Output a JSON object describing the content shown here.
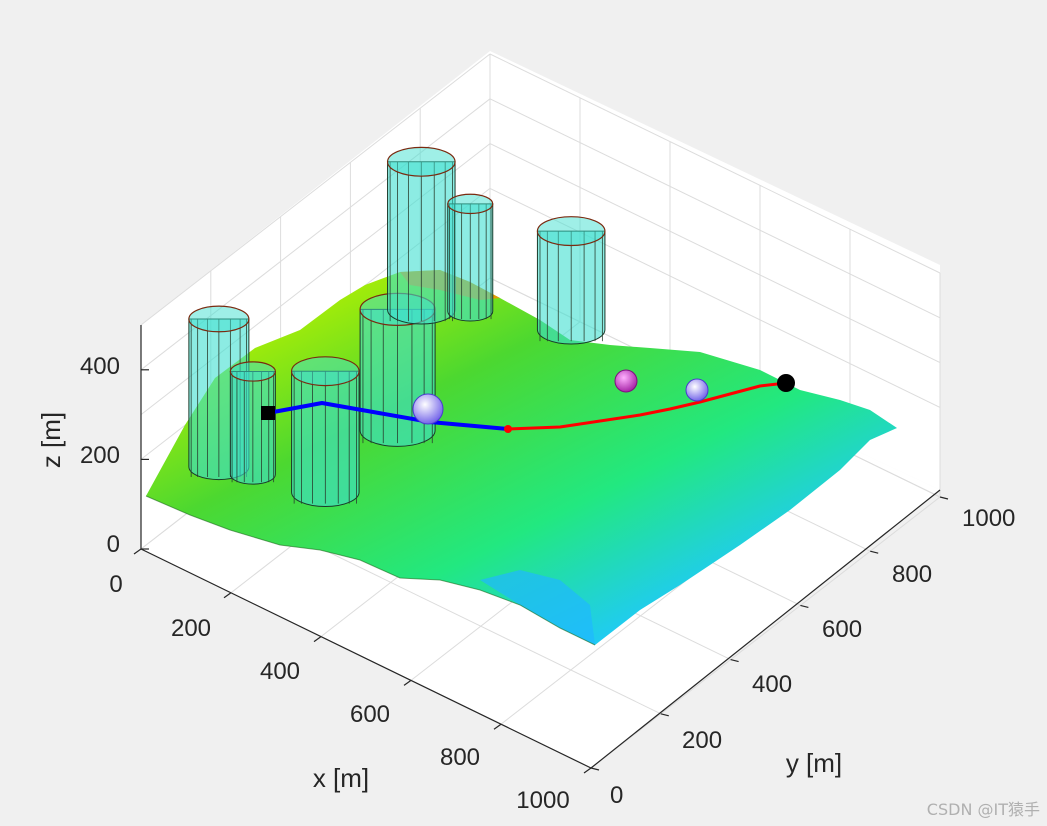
{
  "chart_data": {
    "type": "surface3d",
    "xlabel": "x [m]",
    "ylabel": "y [m]",
    "zlabel": "z [m]",
    "x_ticks": [
      "0",
      "200",
      "400",
      "600",
      "800",
      "1000"
    ],
    "y_ticks": [
      "0",
      "200",
      "400",
      "600",
      "800",
      "1000"
    ],
    "z_ticks": [
      "0",
      "200",
      "400"
    ],
    "xlim": [
      0,
      1000
    ],
    "ylim": [
      0,
      1000
    ],
    "zlim": [
      0,
      500
    ],
    "grid": true,
    "colormap": "jet",
    "colors": {
      "background": "#f0f0f0",
      "axes_background": "#ffffff",
      "grid": "#dcdcdc",
      "obstacle_fill": "#40e0d0",
      "path_blue": "#0000ff",
      "path_red": "#ff0000",
      "start_marker": "#000000",
      "goal_marker": "#000000",
      "sphere_purple": "#cc33cc",
      "sphere_blue": "#5050ff"
    },
    "start_marker": {
      "x": 150,
      "y": 30,
      "z": 300,
      "shape": "square"
    },
    "goal_marker": {
      "x": 230,
      "y": 930,
      "z": 310,
      "shape": "circle"
    },
    "cylinders": [
      {
        "x": 80,
        "y": 120,
        "radius": 40,
        "height": 480
      },
      {
        "x": 140,
        "y": 140,
        "radius": 30,
        "height": 380
      },
      {
        "x": 270,
        "y": 180,
        "radius": 45,
        "height": 420
      },
      {
        "x": 260,
        "y": 400,
        "radius": 50,
        "height": 420
      },
      {
        "x": 80,
        "y": 700,
        "radius": 45,
        "height": 480
      },
      {
        "x": 150,
        "y": 750,
        "radius": 30,
        "height": 390
      },
      {
        "x": 320,
        "y": 820,
        "radius": 45,
        "height": 370
      }
    ],
    "spheres": [
      {
        "x": 260,
        "y": 200,
        "z": 320,
        "color": "blue-white"
      },
      {
        "x": 150,
        "y": 620,
        "z": 330,
        "color": "purple"
      },
      {
        "x": 220,
        "y": 740,
        "z": 330,
        "color": "blue-white"
      }
    ],
    "path_blue": [
      [
        150,
        30
      ],
      [
        155,
        90
      ],
      [
        200,
        200
      ],
      [
        300,
        400
      ]
    ],
    "path_red": [
      [
        300,
        400
      ],
      [
        310,
        480
      ],
      [
        290,
        600
      ],
      [
        270,
        720
      ],
      [
        250,
        850
      ],
      [
        230,
        930
      ]
    ]
  },
  "watermark": "CSDN @IT猿手"
}
